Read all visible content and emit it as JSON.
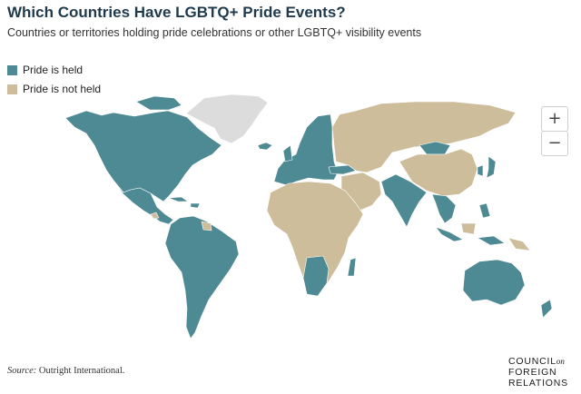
{
  "header": {
    "title": "Which Countries Have LGBTQ+ Pride Events?",
    "subtitle": "Countries or territories holding pride celebrations or other LGBTQ+ visibility events"
  },
  "legend": {
    "items": [
      {
        "label": "Pride is held",
        "color": "#4d8a93"
      },
      {
        "label": "Pride is not held",
        "color": "#cdbd9b"
      }
    ]
  },
  "colors": {
    "held": "#4d8a93",
    "not_held": "#cdbd9b",
    "no_data": "#dcdcdc",
    "border": "#ffffff"
  },
  "map_controls": {
    "zoom_in": "+",
    "zoom_out": "−"
  },
  "footer": {
    "source_prefix": "Source:",
    "source_text": " Outright International.",
    "logo_line1": "COUNCIL",
    "logo_on": "on",
    "logo_line2": "FOREIGN",
    "logo_line3": "RELATIONS"
  }
}
